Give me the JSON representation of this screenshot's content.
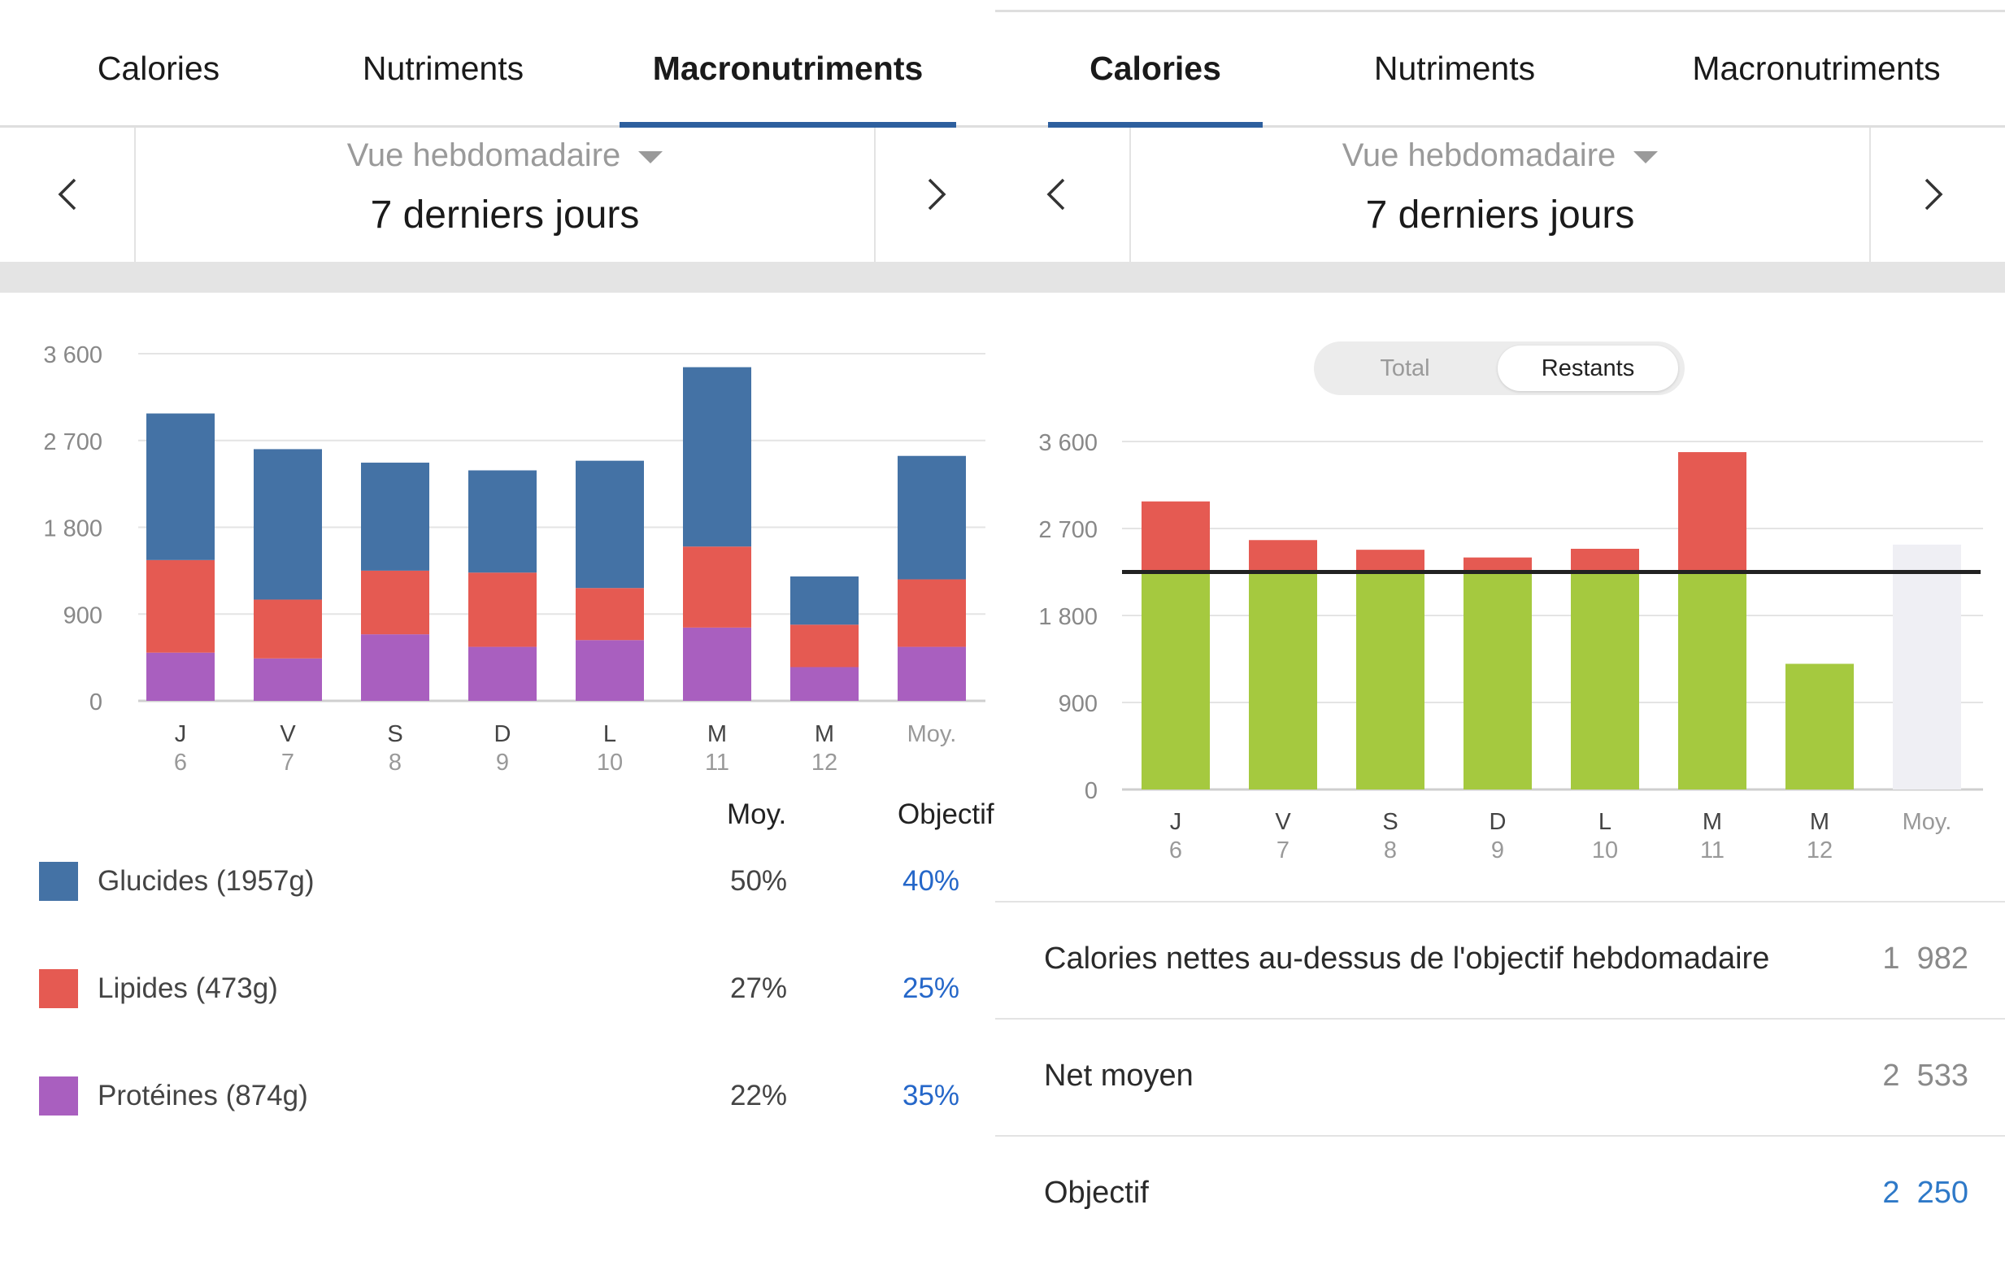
{
  "left": {
    "tabs": [
      {
        "label": "Calories",
        "active": false
      },
      {
        "label": "Nutriments",
        "active": false
      },
      {
        "label": "Macronutriments",
        "active": true
      }
    ],
    "view_select": "Vue hebdomadaire",
    "period": "7 derniers jours",
    "chart_data": {
      "type": "bar",
      "stacked": true,
      "categories": [
        {
          "letter": "J",
          "day": "6"
        },
        {
          "letter": "V",
          "day": "7"
        },
        {
          "letter": "S",
          "day": "8"
        },
        {
          "letter": "D",
          "day": "9"
        },
        {
          "letter": "L",
          "day": "10"
        },
        {
          "letter": "M",
          "day": "11"
        },
        {
          "letter": "M",
          "day": "12"
        },
        {
          "letter": "Moy.",
          "day": ""
        }
      ],
      "yticks": [
        "0",
        "900",
        "1 800",
        "2 700",
        "3 600"
      ],
      "ylim": [
        0,
        3600
      ],
      "grid": true,
      "series": [
        {
          "name": "Protéines",
          "color": "#a95fbf",
          "values": [
            500,
            440,
            690,
            560,
            630,
            760,
            350,
            560
          ]
        },
        {
          "name": "Lipides",
          "color": "#e55a52",
          "values": [
            960,
            610,
            660,
            770,
            540,
            840,
            440,
            700
          ]
        },
        {
          "name": "Glucides",
          "color": "#4472a5",
          "values": [
            1520,
            1560,
            1120,
            1060,
            1320,
            1860,
            500,
            1280
          ]
        }
      ]
    },
    "legend": {
      "avg_header": "Moy.",
      "goal_header": "Objectif",
      "rows": [
        {
          "label": "Glucides (1957g)",
          "avg": "50%",
          "goal": "40%",
          "color": "#4472a5"
        },
        {
          "label": "Lipides (473g)",
          "avg": "27%",
          "goal": "25%",
          "color": "#e55a52"
        },
        {
          "label": "Protéines (874g)",
          "avg": "22%",
          "goal": "35%",
          "color": "#a95fbf"
        }
      ]
    }
  },
  "right": {
    "tabs": [
      {
        "label": "Calories",
        "active": true
      },
      {
        "label": "Nutriments",
        "active": false
      },
      {
        "label": "Macronutriments",
        "active": false
      }
    ],
    "view_select": "Vue hebdomadaire",
    "period": "7 derniers jours",
    "toggle": {
      "total_label": "Total",
      "remaining_label": "Restants",
      "selected": "Restants"
    },
    "chart_data": {
      "type": "bar",
      "categories": [
        {
          "letter": "J",
          "day": "6"
        },
        {
          "letter": "V",
          "day": "7"
        },
        {
          "letter": "S",
          "day": "8"
        },
        {
          "letter": "D",
          "day": "9"
        },
        {
          "letter": "L",
          "day": "10"
        },
        {
          "letter": "M",
          "day": "11"
        },
        {
          "letter": "M",
          "day": "12"
        },
        {
          "letter": "Moy.",
          "day": ""
        }
      ],
      "yticks": [
        "0",
        "900",
        "1 800",
        "2 700",
        "3 600"
      ],
      "ylim": [
        0,
        3600
      ],
      "grid": true,
      "goal": 2250,
      "values": [
        2980,
        2580,
        2480,
        2400,
        2490,
        3490,
        1300,
        2533
      ],
      "colors": {
        "under": "#a5c93f",
        "over": "#e55a52",
        "average": "#efeff4",
        "goal_line": "#222222"
      }
    },
    "stats": [
      {
        "label": "Calories nettes au-dessus de l'objectif hebdomadaire",
        "value": "1  982",
        "link": false
      },
      {
        "label": "Net moyen",
        "value": "2  533",
        "link": false
      },
      {
        "label": "Objectif",
        "value": "2  250",
        "link": true
      }
    ]
  }
}
